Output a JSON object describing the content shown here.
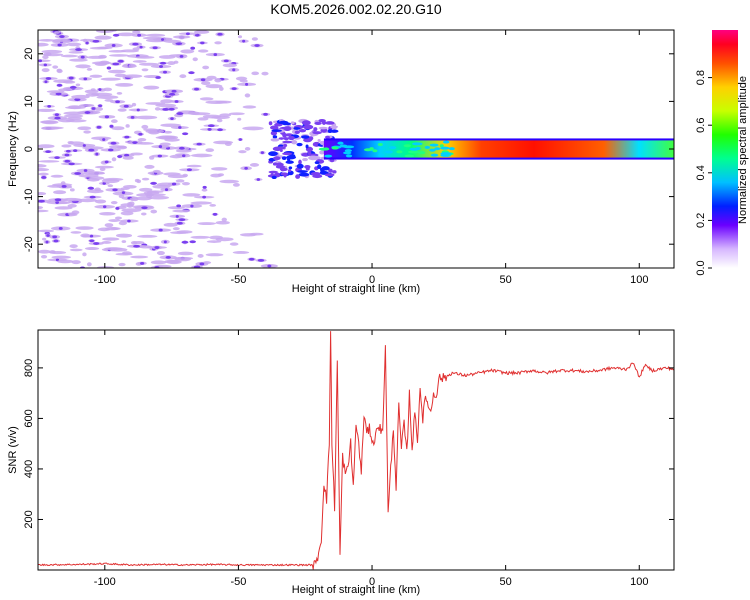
{
  "title": "KOM5.2026.002.02.20.G10",
  "colors": {
    "line": "#e03030",
    "noise": "#c8a8f0",
    "noise_dark": "#7a3ff0",
    "frame": "#000000"
  },
  "chart_data": [
    {
      "type": "heatmap",
      "xlabel": "Height of straight line (km)",
      "ylabel": "Frequency (Hz)",
      "xlim": [
        -125,
        113
      ],
      "ylim": [
        -25,
        25
      ],
      "x_ticks": [
        -100,
        -50,
        0,
        50,
        100
      ],
      "y_ticks": [
        -20,
        -10,
        0,
        10,
        20
      ],
      "colorbar": {
        "label": "Normalized spectral amplitude",
        "range": [
          0.0,
          1.0
        ],
        "ticks": [
          0.0,
          0.2,
          0.4,
          0.6,
          0.8
        ],
        "tick_labels": [
          "0.0",
          "0.2",
          "0.4",
          "0.6",
          "0.8"
        ]
      },
      "signal_band": {
        "start_km": -38,
        "freq_hz": 0,
        "bandwidth_hz": 1.5
      },
      "noise_region": {
        "x_range": [
          -125,
          -35
        ],
        "freq_range": [
          -25,
          25
        ]
      }
    },
    {
      "type": "line",
      "xlabel": "Height of straight line (km)",
      "ylabel": "SNR (v/v)",
      "xlim": [
        -125,
        113
      ],
      "ylim": [
        0,
        950
      ],
      "x_ticks": [
        -100,
        -50,
        0,
        50,
        100
      ],
      "y_ticks": [
        200,
        400,
        600,
        800
      ],
      "series": [
        {
          "name": "SNR",
          "x": [
            -125,
            -110,
            -100,
            -90,
            -80,
            -70,
            -60,
            -50,
            -40,
            -30,
            -21,
            -19,
            -18,
            -17,
            -16,
            -15.5,
            -15,
            -14,
            -13,
            -12,
            -11,
            -10,
            -9,
            -8,
            -7,
            -6,
            -5,
            -4,
            -3,
            -2,
            -1,
            0,
            1,
            2,
            3,
            4,
            5,
            6,
            7,
            8,
            9,
            10,
            11,
            12,
            13,
            14,
            15,
            16,
            17,
            18,
            19,
            20,
            21,
            22,
            23,
            24,
            25,
            27,
            30,
            35,
            40,
            45,
            50,
            55,
            60,
            65,
            70,
            75,
            80,
            85,
            90,
            95,
            98,
            100,
            102,
            105,
            110,
            113
          ],
          "y": [
            20,
            22,
            25,
            20,
            22,
            20,
            22,
            20,
            20,
            20,
            20,
            120,
            350,
            280,
            500,
            950,
            500,
            250,
            820,
            60,
            450,
            380,
            400,
            510,
            320,
            580,
            500,
            380,
            620,
            540,
            560,
            520,
            500,
            580,
            560,
            540,
            900,
            220,
            400,
            560,
            330,
            650,
            480,
            580,
            460,
            700,
            480,
            620,
            520,
            720,
            600,
            680,
            660,
            620,
            700,
            690,
            760,
            760,
            780,
            770,
            780,
            790,
            780,
            780,
            790,
            780,
            790,
            790,
            785,
            790,
            800,
            795,
            820,
            760,
            810,
            790,
            800,
            795
          ]
        }
      ]
    }
  ]
}
